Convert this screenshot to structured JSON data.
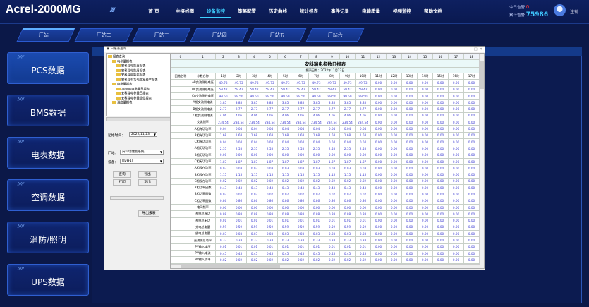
{
  "app_title": "Acrel-2000MG",
  "nav": [
    "首 页",
    "主接线图",
    "设备监控",
    "策略配置",
    "历史曲线",
    "统计报表",
    "事件记录",
    "电能质量",
    "视频监控",
    "帮助文档"
  ],
  "nav_active": 2,
  "alarm": {
    "today_label": "今日告警",
    "today_value": "0",
    "total_label": "累计告警",
    "total_value": "75986"
  },
  "logout": "注销",
  "stations": [
    "厂站一",
    "厂站二",
    "厂站三",
    "厂站四",
    "厂站五",
    "厂站六"
  ],
  "sidebar": [
    "PCS数据",
    "BMS数据",
    "电表数据",
    "空调数据",
    "消防/照明",
    "UPS数据"
  ],
  "sidebar_stripe": "/////",
  "dialog": {
    "title": "▣ 日报表查询",
    "tree": [
      "报表查询",
      "电参量报表",
      "安科瑞电能日报表",
      "安科瑞电能月报表",
      "安科瑞电能年报表",
      "安科瑞有功电能复费率报表",
      "电参量报表",
      "2000G电参量日报表",
      "安科瑞电参量日报表",
      "安科瑞电参量极值报表",
      "温度量报表"
    ],
    "start_label": "起始时间：",
    "start_value": "2022/11/23",
    "station_label": "厂站：",
    "station_value": "安科瑞储能系统",
    "device_label": "设备：",
    "device_value": "[设备1]",
    "buttons": {
      "query": "查询",
      "export": "导出",
      "print": "打印",
      "exit": "退出",
      "export_report": "导出报表"
    }
  },
  "report": {
    "col_index": [
      "0",
      "1",
      "2",
      "3",
      "4",
      "5",
      "6",
      "7",
      "8",
      "9",
      "10",
      "11",
      "12",
      "13",
      "14",
      "15",
      "16",
      "17",
      "18"
    ],
    "title": "安科瑞电参数日报表",
    "date": "报表日期：2022年11月23日",
    "head": [
      "回路名称",
      "参数名称",
      "1时",
      "2时",
      "3时",
      "4时",
      "5时",
      "6时",
      "7时",
      "8时",
      "9时",
      "10时",
      "11时",
      "12时",
      "13时",
      "14时",
      "15时",
      "16时",
      "17时"
    ],
    "rows": [
      [
        "AB交流侧线电压",
        "49.73"
      ],
      [
        "BC交流侧线电压",
        "59.42"
      ],
      [
        "CA交流侧线电压",
        "99.50"
      ],
      [
        "A相交流侧电流",
        "3.85"
      ],
      [
        "B相交流侧电流",
        "2.77"
      ],
      [
        "C相交流侧电流",
        "4.06"
      ],
      [
        "交流频率",
        "234.54"
      ],
      [
        "A相有功功率",
        "0.04"
      ],
      [
        "B相有功功率",
        "1.68"
      ],
      [
        "C相有功功率",
        "0.04"
      ],
      [
        "A相无功功率",
        "2.55"
      ],
      [
        "B相无功功率",
        "0.00"
      ],
      [
        "C相无功功率",
        "1.87"
      ],
      [
        "A相视在功率",
        "0.03"
      ],
      [
        "B相视在功率",
        "1.15"
      ],
      [
        "C相视在功率",
        "0.02"
      ],
      [
        "A相功率因数",
        "0.43"
      ],
      [
        "B相功率因数",
        "0.02"
      ],
      [
        "C相功率因数",
        "0.86"
      ],
      [
        "电网频率",
        "0.00"
      ],
      [
        "系统总有功",
        "0.88"
      ],
      [
        "系统总无功",
        "0.01"
      ],
      [
        "充电总电量",
        "0.59"
      ],
      [
        "放电总电量",
        "0.03"
      ],
      [
        "直流侧总功率",
        "0.33"
      ],
      [
        "PV输入电压",
        "0.01"
      ],
      [
        "PV输入电流",
        "0.45"
      ],
      [
        "PV输入功率",
        "0.02"
      ],
      [
        "储能充电电量",
        "0.28"
      ],
      [
        "储能放电电量",
        "0.02"
      ]
    ],
    "active_hours": 10,
    "zero_value": "0.00"
  }
}
